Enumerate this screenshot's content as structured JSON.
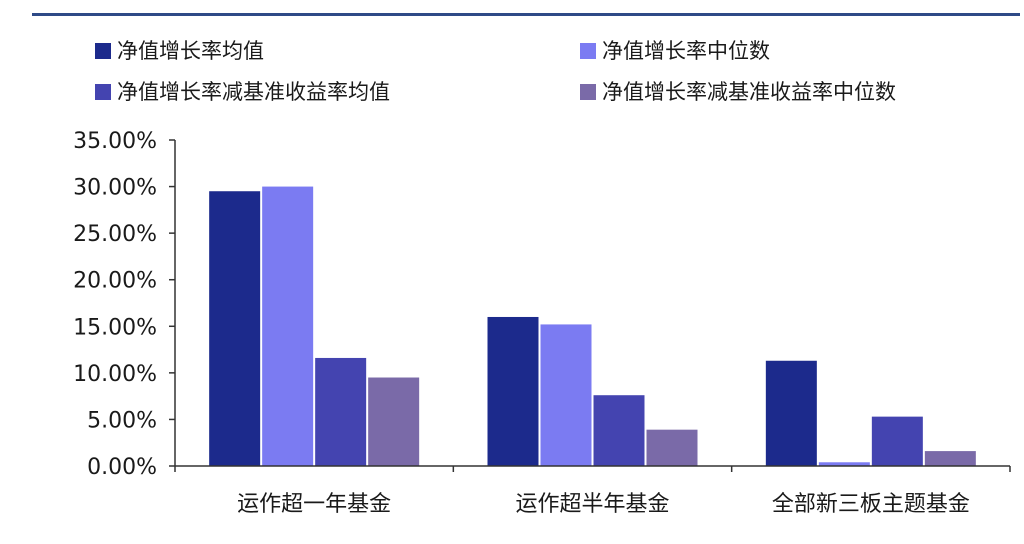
{
  "chart_data": {
    "type": "bar",
    "categories": [
      "运作超一年基金",
      "运作超半年基金",
      "全部新三板主题基金"
    ],
    "series": [
      {
        "name": "净值增长率均值",
        "color": "#1c2a8c",
        "values": [
          29.5,
          16.0,
          11.3
        ]
      },
      {
        "name": "净值增长率中位数",
        "color": "#7b7bf2",
        "values": [
          30.0,
          15.2,
          0.4
        ]
      },
      {
        "name": "净值增长率减基准收益率均值",
        "color": "#4444b0",
        "values": [
          11.6,
          7.6,
          5.3
        ]
      },
      {
        "name": "净值增长率减基准收益率中位数",
        "color": "#7a6aa8",
        "values": [
          9.5,
          3.9,
          1.6
        ]
      }
    ],
    "yticks": [
      "0.00%",
      "5.00%",
      "10.00%",
      "15.00%",
      "20.00%",
      "25.00%",
      "30.00%",
      "35.00%"
    ],
    "ylim": [
      0,
      35
    ],
    "title": "",
    "xlabel": "",
    "ylabel": "",
    "legend_position": "top"
  }
}
